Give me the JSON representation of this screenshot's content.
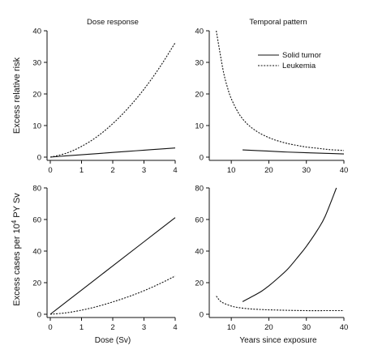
{
  "ylabels": {
    "top": "Excess relative risk",
    "bottom_pre": "Excess cases per 10",
    "bottom_sup": "4",
    "bottom_post": " PY Sv"
  },
  "legend": {
    "solid": "Solid tumor",
    "dotted": "Leukemia"
  },
  "chart_data": [
    {
      "id": "tl",
      "type": "line",
      "title": "Dose response",
      "xlabel": "",
      "ylabel": "Excess relative risk",
      "xlim": [
        0,
        4
      ],
      "ylim": [
        0,
        40
      ],
      "xticks": [
        0,
        1,
        2,
        3,
        4
      ],
      "yticks": [
        0,
        10,
        20,
        30,
        40
      ],
      "series": [
        {
          "name": "Solid tumor",
          "style": "solid",
          "x": [
            0,
            0.5,
            1,
            1.5,
            2,
            2.5,
            3,
            3.5,
            4
          ],
          "y": [
            0,
            0.4,
            0.75,
            1.1,
            1.5,
            1.85,
            2.2,
            2.55,
            2.9
          ]
        },
        {
          "name": "Leukemia",
          "style": "dotted",
          "x": [
            0,
            0.5,
            1,
            1.5,
            2,
            2.5,
            3,
            3.5,
            4
          ],
          "y": [
            0,
            1.2,
            3.4,
            6.5,
            10.6,
            15.6,
            21.5,
            28.4,
            36.2
          ]
        }
      ]
    },
    {
      "id": "tr",
      "type": "line",
      "title": "Temporal pattern",
      "xlabel": "",
      "ylabel": "",
      "xlim": [
        5,
        40
      ],
      "ylim": [
        0,
        40
      ],
      "xticks": [
        10,
        20,
        30,
        40
      ],
      "yticks": [
        0,
        10,
        20,
        30,
        40
      ],
      "series": [
        {
          "name": "Solid tumor",
          "style": "solid",
          "x": [
            13,
            20,
            25,
            30,
            35,
            40
          ],
          "y": [
            2.3,
            1.9,
            1.6,
            1.4,
            1.2,
            1.0
          ]
        },
        {
          "name": "Leukemia",
          "style": "dotted",
          "x": [
            6,
            7,
            8,
            9,
            10,
            12,
            14,
            16,
            18,
            20,
            22,
            25,
            28,
            30,
            33,
            36,
            40
          ],
          "y": [
            40,
            33,
            26.5,
            22,
            18.5,
            13.8,
            10.8,
            8.8,
            7.3,
            6.2,
            5.3,
            4.3,
            3.6,
            3.2,
            2.8,
            2.4,
            2.1
          ]
        }
      ]
    },
    {
      "id": "bl",
      "type": "line",
      "title": "",
      "xlabel": "Dose (Sv)",
      "ylabel": "Excess cases per 10^4 PY Sv",
      "xlim": [
        0,
        4
      ],
      "ylim": [
        0,
        80
      ],
      "xticks": [
        0,
        1,
        2,
        3,
        4
      ],
      "yticks": [
        0,
        20,
        40,
        60,
        80
      ],
      "series": [
        {
          "name": "Solid tumor",
          "style": "solid",
          "x": [
            0,
            1,
            2,
            3,
            4
          ],
          "y": [
            0,
            15.3,
            30.6,
            45.9,
            61.2
          ]
        },
        {
          "name": "Leukemia",
          "style": "dotted",
          "x": [
            0,
            0.5,
            1,
            1.5,
            2,
            2.5,
            3,
            3.5,
            4
          ],
          "y": [
            0,
            0.9,
            2.6,
            4.9,
            7.8,
            11.1,
            14.9,
            19.3,
            24.2
          ]
        }
      ]
    },
    {
      "id": "br",
      "type": "line",
      "title": "",
      "xlabel": "Years since exposure",
      "ylabel": "",
      "xlim": [
        5,
        40
      ],
      "ylim": [
        0,
        80
      ],
      "xticks": [
        10,
        20,
        30,
        40
      ],
      "yticks": [
        0,
        20,
        40,
        60,
        80
      ],
      "series": [
        {
          "name": "Solid tumor",
          "style": "solid",
          "x": [
            13,
            15,
            18,
            20,
            22,
            25,
            28,
            30,
            33,
            35,
            38
          ],
          "y": [
            8,
            10.5,
            14.5,
            18,
            22,
            28.5,
            37,
            43,
            53.5,
            62,
            80
          ]
        },
        {
          "name": "Leukemia",
          "style": "dotted",
          "x": [
            6,
            7,
            8,
            10,
            12,
            15,
            18,
            20,
            25,
            30,
            35,
            40
          ],
          "y": [
            11.5,
            8.5,
            7,
            5.2,
            4.2,
            3.4,
            3,
            2.8,
            2.5,
            2.3,
            2.3,
            2.3
          ]
        }
      ]
    }
  ]
}
